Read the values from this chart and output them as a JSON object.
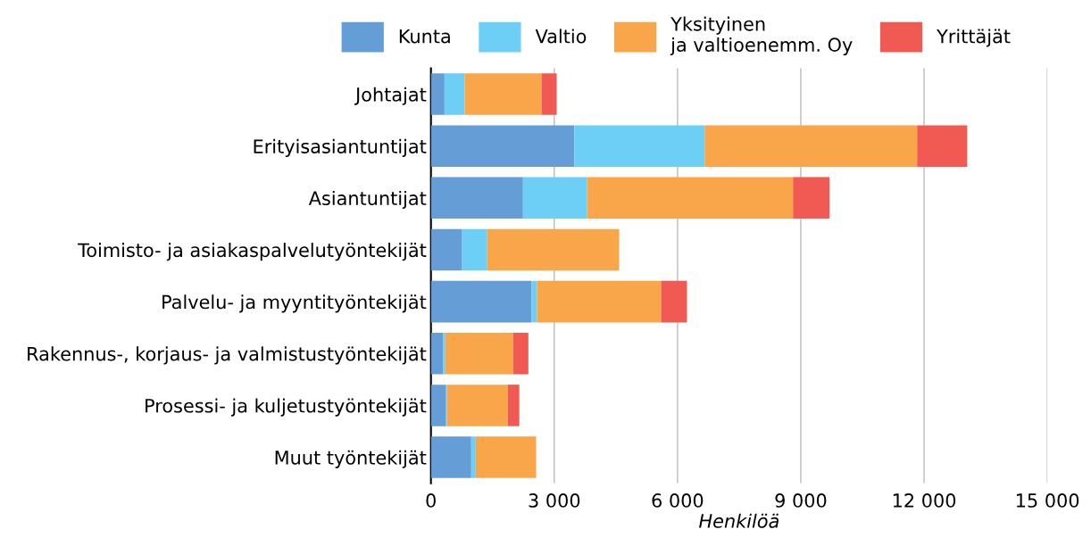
{
  "chart_data": {
    "type": "bar",
    "orientation": "horizontal",
    "stacked": true,
    "xlabel": "Henkilöä",
    "categories": [
      "Johtajat",
      "Erityisasiantuntijat",
      "Asiantuntijat",
      "Toimisto- ja asiakaspalvelutyöntekijät",
      "Palvelu- ja myyntityöntekijät",
      "Rakennus-, korjaus- ja valmistustyöntekijät",
      "Prosessi- ja kuljetustyöntekijät",
      "Muut työntekijät"
    ],
    "series": [
      {
        "name": "Kunta",
        "color": "#659dd6",
        "values": [
          330,
          3490,
          2240,
          760,
          2450,
          300,
          370,
          980
        ]
      },
      {
        "name": "Valtio",
        "color": "#6dcff6",
        "values": [
          490,
          3170,
          1560,
          610,
          130,
          50,
          20,
          110
        ]
      },
      {
        "name": "Yksityinen\nja valtioenemm. Oy",
        "color": "#f9a64a",
        "values": [
          1870,
          5170,
          5010,
          3210,
          3020,
          1650,
          1480,
          1470
        ]
      },
      {
        "name": "Yrittäjät",
        "color": "#f05a52",
        "values": [
          370,
          1220,
          890,
          null,
          630,
          370,
          280,
          null
        ]
      }
    ],
    "xlim": [
      0,
      15000
    ],
    "xticks": [
      0,
      {
        "value": 3000,
        "label": "3 000"
      },
      {
        "value": 6000,
        "label": "6 000"
      },
      {
        "value": 9000,
        "label": "9 000"
      },
      {
        "value": 12000,
        "label": "12 000"
      },
      {
        "value": 15000,
        "label": "15 000"
      }
    ],
    "grid": "x",
    "legend": "top"
  }
}
